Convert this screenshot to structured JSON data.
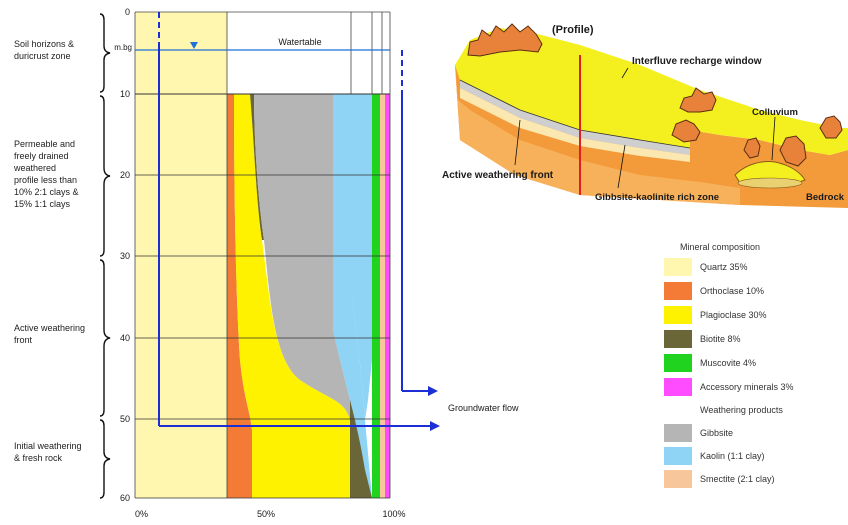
{
  "left_labels": {
    "horizon_1": "Soil horizons &\nduricrust zone",
    "horizon_2": "Permeable and\nfreely drained\nweathered\nprofile less than\n10% 2:1 clays &\n15% 1:1 clays",
    "horizon_3": "Active weathering\nfront",
    "horizon_4": "Initial weathering\n& fresh rock"
  },
  "depth_axis": {
    "unit": "m.bg",
    "ticks": [
      "0",
      "10",
      "20",
      "30",
      "40",
      "50",
      "60"
    ]
  },
  "x_axis": {
    "ticks": [
      "0%",
      "50%",
      "100%"
    ]
  },
  "watertable_label": "Watertable",
  "groundwater_flow_label": "Groundwater flow",
  "profile": {
    "title": "(Profile)",
    "interfluve": "Interfluve recharge window",
    "colluvium": "Colluvium",
    "active_front": "Active weathering front",
    "gibbsite_zone": "Gibbsite-kaolinite rich zone",
    "bedrock": "Bedrock"
  },
  "legend": {
    "header_minerals": "Mineral composition",
    "header_products": "Weathering products",
    "minerals": [
      {
        "label": "Quartz 35%",
        "color": "#fff6b0"
      },
      {
        "label": "Orthoclase 10%",
        "color": "#f37b35"
      },
      {
        "label": "Plagioclase 30%",
        "color": "#fff200"
      },
      {
        "label": "Biotite 8%",
        "color": "#6b6638"
      },
      {
        "label": "Muscovite 4%",
        "color": "#1fd31f"
      },
      {
        "label": "Accessory minerals 3%",
        "color": "#ff4cff"
      }
    ],
    "products": [
      {
        "label": "Gibbsite",
        "color": "#b5b5b5"
      },
      {
        "label": "Kaolin (1:1 clay)",
        "color": "#8fd3f5"
      },
      {
        "label": "Smectite (2:1 clay)",
        "color": "#f7c79b"
      }
    ]
  }
}
